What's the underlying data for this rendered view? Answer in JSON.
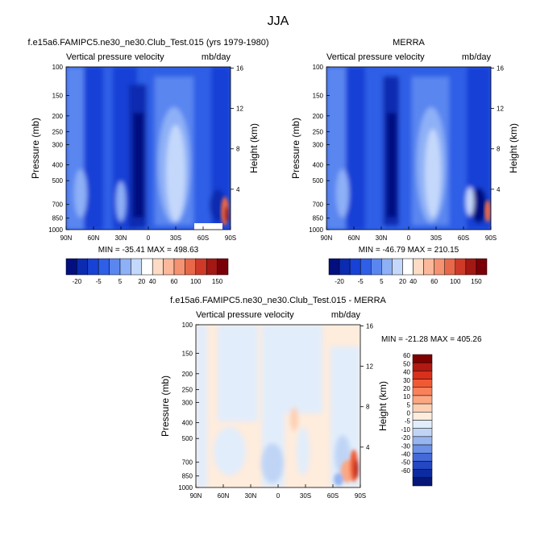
{
  "page_title": "JJA",
  "chart_data": [
    {
      "type": "heatmap",
      "title": "f.e15a6.FAMIPC5.ne30_ne30.Club_Test.015 (yrs 1979-1980)",
      "subtitle_left": "Vertical pressure velocity",
      "subtitle_right": "mb/day",
      "xlabel": "",
      "ylabel": "Pressure (mb)",
      "ylabel_right": "Height (km)",
      "x_ticks": [
        "90N",
        "60N",
        "30N",
        "0",
        "30S",
        "60S",
        "90S"
      ],
      "y_ticks": [
        "100",
        "150",
        "200",
        "250",
        "300",
        "400",
        "500",
        "700",
        "850",
        "1000"
      ],
      "height_ticks": [
        "16",
        "12",
        "8",
        "4"
      ],
      "stats": "MIN = -35.41  MAX = 498.63",
      "colorbar_labels": [
        "-20",
        "-5",
        "5",
        "20",
        "40",
        "60",
        "100",
        "150"
      ],
      "colorbar_colors": [
        "#030f7f",
        "#0b2bb0",
        "#1841d6",
        "#2e5fe6",
        "#5a86f0",
        "#8eb0f6",
        "#c4d8fb",
        "#ffffff",
        "#fddbc4",
        "#fbb89a",
        "#f59272",
        "#e8684a",
        "#cf3a28",
        "#a41814",
        "#7a0008"
      ]
    },
    {
      "type": "heatmap",
      "title": "MERRA",
      "subtitle_left": "Vertical pressure velocity",
      "subtitle_right": "mb/day",
      "xlabel": "",
      "ylabel": "Pressure (mb)",
      "ylabel_right": "Height (km)",
      "x_ticks": [
        "90N",
        "60N",
        "30N",
        "0",
        "30S",
        "60S",
        "90S"
      ],
      "y_ticks": [
        "100",
        "150",
        "200",
        "250",
        "300",
        "400",
        "500",
        "700",
        "850",
        "1000"
      ],
      "height_ticks": [
        "16",
        "12",
        "8",
        "4"
      ],
      "stats": "MIN = -46.79  MAX = 210.15",
      "colorbar_labels": [
        "-20",
        "-5",
        "5",
        "20",
        "40",
        "60",
        "100",
        "150"
      ],
      "colorbar_colors": [
        "#030f7f",
        "#0b2bb0",
        "#1841d6",
        "#2e5fe6",
        "#5a86f0",
        "#8eb0f6",
        "#c4d8fb",
        "#ffffff",
        "#fddbc4",
        "#fbb89a",
        "#f59272",
        "#e8684a",
        "#cf3a28",
        "#a41814",
        "#7a0008"
      ]
    },
    {
      "type": "heatmap",
      "title": "f.e15a6.FAMIPC5.ne30_ne30.Club_Test.015 - MERRA",
      "subtitle_left": "Vertical pressure velocity",
      "subtitle_right": "mb/day",
      "xlabel": "",
      "ylabel": "Pressure (mb)",
      "ylabel_right": "Height (km)",
      "x_ticks": [
        "90N",
        "60N",
        "30N",
        "0",
        "30S",
        "60S",
        "90S"
      ],
      "y_ticks": [
        "100",
        "150",
        "200",
        "250",
        "300",
        "400",
        "500",
        "700",
        "850",
        "1000"
      ],
      "height_ticks": [
        "16",
        "12",
        "8",
        "4"
      ],
      "stats": "MIN = -21.28  MAX = 405.26",
      "colorbar_labels": [
        "60",
        "50",
        "40",
        "30",
        "20",
        "10",
        "5",
        "0",
        "-5",
        "-10",
        "-20",
        "-30",
        "-40",
        "-50",
        "-60"
      ],
      "colorbar_colors": [
        "#7f0000",
        "#b01a12",
        "#d9301c",
        "#ef5a35",
        "#f9825a",
        "#fba882",
        "#fdd0b4",
        "#feecdd",
        "#e2edfb",
        "#c0d5f6",
        "#97b6f0",
        "#6c91e6",
        "#4469d9",
        "#2447c2",
        "#0d2ba0",
        "#061779"
      ]
    }
  ]
}
